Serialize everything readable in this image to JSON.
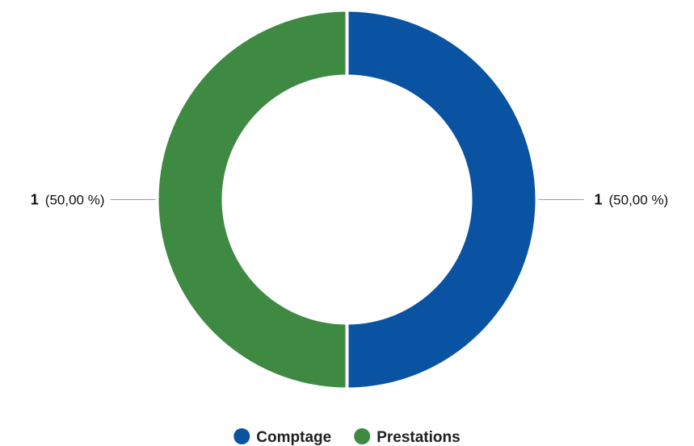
{
  "chart_data": {
    "type": "pie",
    "variant": "donut",
    "title": "",
    "slices": [
      {
        "name": "Comptage",
        "value": 1,
        "value_label": "1",
        "percent_label": "(50,00 %)",
        "color": "#0a53a3"
      },
      {
        "name": "Prestations",
        "value": 1,
        "value_label": "1",
        "percent_label": "(50,00 %)",
        "color": "#3e8a43"
      }
    ],
    "legend_position": "bottom",
    "start_angle_deg": 0,
    "direction": "clockwise",
    "separator_color": "#ffffff",
    "leader_line_color": "#9e9e9e"
  }
}
